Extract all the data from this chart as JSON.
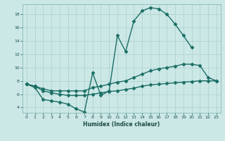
{
  "xlabel": "Humidex (Indice chaleur)",
  "xlim": [
    -0.5,
    23.5
  ],
  "ylim": [
    3.2,
    19.5
  ],
  "yticks": [
    4,
    6,
    8,
    10,
    12,
    14,
    16,
    18
  ],
  "xticks": [
    0,
    1,
    2,
    3,
    4,
    5,
    6,
    7,
    8,
    9,
    10,
    11,
    12,
    13,
    14,
    15,
    16,
    17,
    18,
    19,
    20,
    21,
    22,
    23
  ],
  "bg_color": "#cce8e6",
  "grid_color": "#aacfcd",
  "line_color": "#1a6e65",
  "curve1_x": [
    0,
    1,
    2,
    3,
    4,
    5,
    6,
    7,
    8,
    9,
    10,
    11,
    12,
    13,
    14,
    15,
    16,
    17,
    18,
    19,
    20
  ],
  "curve1_y": [
    7.5,
    7.0,
    5.2,
    5.0,
    4.8,
    4.5,
    3.8,
    3.3,
    9.2,
    5.8,
    6.5,
    14.8,
    12.4,
    17.0,
    18.5,
    19.0,
    18.8,
    18.0,
    16.5,
    14.8,
    13.0
  ],
  "curve2_x": [
    0,
    1,
    2,
    3,
    4,
    5,
    6,
    7,
    8,
    9,
    10,
    11,
    12,
    13,
    14,
    15,
    16,
    17,
    18,
    19,
    20,
    21,
    22,
    23
  ],
  "curve2_y": [
    7.5,
    7.2,
    6.8,
    6.5,
    6.5,
    6.5,
    6.5,
    6.5,
    7.0,
    7.2,
    7.5,
    7.8,
    8.0,
    8.5,
    9.0,
    9.5,
    9.8,
    10.0,
    10.2,
    10.5,
    10.5,
    10.3,
    8.5,
    8.0
  ],
  "curve3_x": [
    0,
    1,
    2,
    3,
    4,
    5,
    6,
    7,
    8,
    9,
    10,
    11,
    12,
    13,
    14,
    15,
    16,
    17,
    18,
    19,
    20,
    21,
    22,
    23
  ],
  "curve3_y": [
    7.5,
    7.2,
    6.5,
    6.2,
    6.0,
    5.8,
    5.8,
    5.8,
    6.0,
    6.2,
    6.4,
    6.5,
    6.7,
    6.9,
    7.2,
    7.4,
    7.5,
    7.6,
    7.7,
    7.8,
    7.9,
    8.0,
    8.0,
    8.0
  ]
}
